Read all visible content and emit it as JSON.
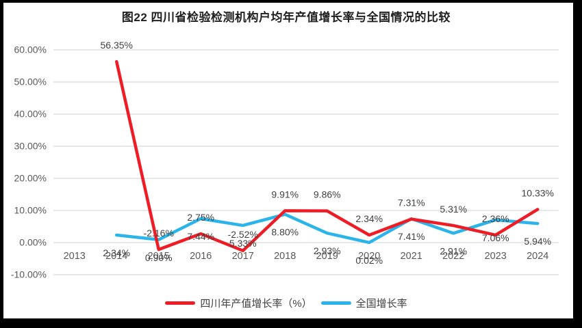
{
  "page": {
    "background": "#FFFFFF",
    "scan_border_color": "#000000"
  },
  "chart_data": {
    "type": "line",
    "title": "图22  四川省检验检测机构户均年产值增长率与全国情况的比较",
    "categories": [
      "2013",
      "2014",
      "2015",
      "2016",
      "2017",
      "2018",
      "2019",
      "2020",
      "2021",
      "2022",
      "2023",
      "2024"
    ],
    "yticks": [
      "60.00%",
      "50.00%",
      "40.00%",
      "30.00%",
      "20.00%",
      "10.00%",
      "0.00%",
      "-10.00%"
    ],
    "ylim": [
      -10,
      60
    ],
    "ytick_step": 10,
    "grid": true,
    "legend_position": "bottom",
    "gridline_color": "#D9D9D9",
    "axis_label_color": "#595959",
    "data_label_color": "#404040",
    "series": [
      {
        "name": "四川年产值增长率（%）",
        "color": "#EE1C25",
        "label_position": "above",
        "values": [
          null,
          56.35,
          -2.16,
          2.75,
          -2.52,
          9.91,
          9.86,
          2.34,
          7.31,
          5.31,
          2.36,
          10.33
        ],
        "labels": [
          "",
          "56.35%",
          "-2.16%",
          "2.75%",
          "-2.52%",
          "9.91%",
          "9.86%",
          "2.34%",
          "7.31%",
          "5.31%",
          "2.36%",
          "10.33%"
        ]
      },
      {
        "name": "全国增长率",
        "color": "#2BB4E9",
        "label_position": "below",
        "values": [
          null,
          2.34,
          0.9,
          7.44,
          5.33,
          8.8,
          2.93,
          0.02,
          7.41,
          2.91,
          7.06,
          5.94
        ],
        "labels": [
          "",
          "2.34%",
          "0.90%",
          "7.44%",
          "5.33%",
          "8.80%",
          "2.93%",
          "0.02%",
          "7.41%",
          "2.91%",
          "7.06%",
          "5.94%"
        ]
      }
    ]
  }
}
